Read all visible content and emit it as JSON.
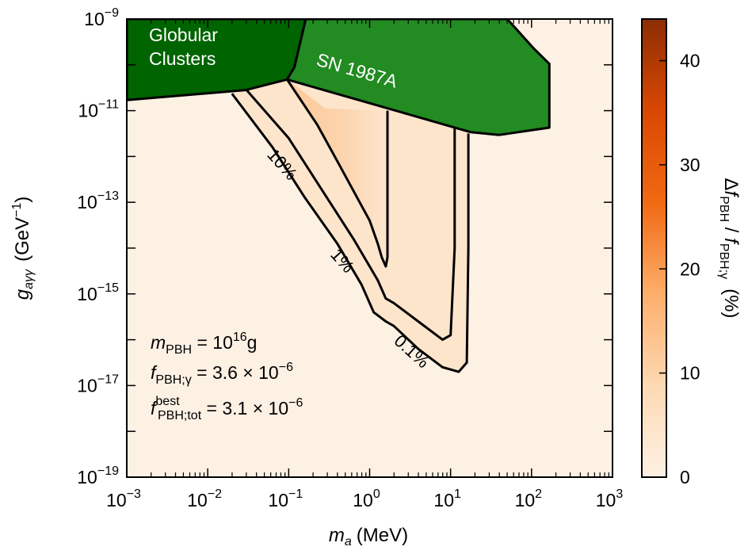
{
  "chart_data": {
    "type": "heatmap",
    "xlabel_main": "m",
    "xlabel_sub": "a",
    "xlabel_unit": "(MeV)",
    "ylabel_main": "g",
    "ylabel_sub": "aγγ",
    "ylabel_unit": "(GeV",
    "ylabel_exp": "−1",
    "ylabel_close": ")",
    "xlim_log10": [
      -3,
      3
    ],
    "ylim_log10": [
      -19,
      -9
    ],
    "x_ticks": [
      {
        "base": "10",
        "exp": "−3",
        "log10": -3
      },
      {
        "base": "10",
        "exp": "−2",
        "log10": -2
      },
      {
        "base": "10",
        "exp": "−1",
        "log10": -1
      },
      {
        "base": "10",
        "exp": "0",
        "log10": 0
      },
      {
        "base": "10",
        "exp": "1",
        "log10": 1
      },
      {
        "base": "10",
        "exp": "2",
        "log10": 2
      },
      {
        "base": "10",
        "exp": "3",
        "log10": 3
      }
    ],
    "y_ticks": [
      {
        "base": "10",
        "exp": "−19",
        "log10": -19
      },
      {
        "base": "10",
        "exp": "−17",
        "log10": -17
      },
      {
        "base": "10",
        "exp": "−15",
        "log10": -15
      },
      {
        "base": "10",
        "exp": "−13",
        "log10": -13
      },
      {
        "base": "10",
        "exp": "−11",
        "log10": -11
      },
      {
        "base": "10",
        "exp": "−9",
        "log10": -9
      }
    ],
    "colorbar": {
      "range": [
        0,
        44
      ],
      "ticks": [
        "0",
        "10",
        "20",
        "30",
        "40"
      ],
      "tick_values": [
        0,
        10,
        20,
        30,
        40
      ],
      "label": "Δf_PBH / f_PBH;γ (%)",
      "label_parts": {
        "delta": "Δ",
        "f1": "f",
        "sub1": "PBH",
        "sep": " / ",
        "f2": "f",
        "sub2": "PBH;γ",
        "unit": "(%)"
      },
      "colors": [
        "#fdf1e4",
        "#fdd9b3",
        "#fdae6b",
        "#f16913",
        "#d94801",
        "#8c2d04"
      ]
    },
    "background_color": "#fdf1e4",
    "excluded_regions": [
      {
        "name": "Globular Clusters",
        "lines": [
          "Globular",
          "Clusters"
        ],
        "color": "#006400",
        "boundary": [
          [
            -3,
            -9
          ],
          [
            -0.79,
            -9
          ],
          [
            -0.93,
            -10.05
          ],
          [
            -1.02,
            -10.32
          ],
          [
            -1.53,
            -10.55
          ],
          [
            -3,
            -10.77
          ]
        ]
      },
      {
        "name": "SN 1987A",
        "lines": [
          "SN 1987A"
        ],
        "color": "#228b22",
        "boundary": [
          [
            -0.79,
            -9
          ],
          [
            1.7,
            -9
          ],
          [
            2.02,
            -9.63
          ],
          [
            2.22,
            -9.98
          ],
          [
            2.22,
            -11.37
          ],
          [
            1.6,
            -11.53
          ],
          [
            1.25,
            -11.47
          ],
          [
            -1.02,
            -10.32
          ],
          [
            -0.93,
            -10.05
          ]
        ]
      }
    ],
    "contours": [
      {
        "label": "10%",
        "level": 10,
        "points": [
          [
            -1.02,
            -10.32
          ],
          [
            -0.65,
            -11.3
          ],
          [
            -0.4,
            -12.1
          ],
          [
            0.0,
            -13.4
          ],
          [
            0.1,
            -13.9
          ],
          [
            0.15,
            -14.2
          ],
          [
            0.2,
            -14.4
          ],
          [
            0.22,
            -14.2
          ],
          [
            0.22,
            -11.0
          ]
        ]
      },
      {
        "label": "1%",
        "level": 1,
        "points": [
          [
            -1.52,
            -10.55
          ],
          [
            -1.0,
            -11.6
          ],
          [
            -0.6,
            -12.7
          ],
          [
            -0.2,
            -13.8
          ],
          [
            0.1,
            -14.7
          ],
          [
            0.2,
            -15.1
          ],
          [
            0.3,
            -15.2
          ],
          [
            0.6,
            -15.6
          ],
          [
            0.9,
            -16.0
          ],
          [
            1.0,
            -15.9
          ],
          [
            1.05,
            -14.0
          ],
          [
            1.05,
            -11.3
          ]
        ]
      },
      {
        "label": "0.1%",
        "level": 0.1,
        "points": [
          [
            -1.7,
            -10.63
          ],
          [
            -1.2,
            -11.8
          ],
          [
            -0.8,
            -12.9
          ],
          [
            -0.4,
            -13.9
          ],
          [
            -0.1,
            -14.8
          ],
          [
            0.05,
            -15.4
          ],
          [
            0.2,
            -15.6
          ],
          [
            0.3,
            -15.7
          ],
          [
            0.6,
            -16.2
          ],
          [
            0.9,
            -16.6
          ],
          [
            1.1,
            -16.7
          ],
          [
            1.2,
            -16.5
          ],
          [
            1.22,
            -14.0
          ],
          [
            1.22,
            -11.5
          ]
        ]
      }
    ],
    "annotations": {
      "mass": {
        "sym": "m",
        "sub": "PBH",
        "eq": " = 10",
        "exp": "16",
        "unit": "g"
      },
      "fgamma": {
        "sym": "f",
        "sub": "PBH;γ",
        "eq": " = 3.6 × 10",
        "exp": "−6"
      },
      "fbest": {
        "sym": "f",
        "sup": "best",
        "sub": "PBH;tot",
        "eq": " = 3.1 × 10",
        "exp": "−6"
      }
    }
  }
}
